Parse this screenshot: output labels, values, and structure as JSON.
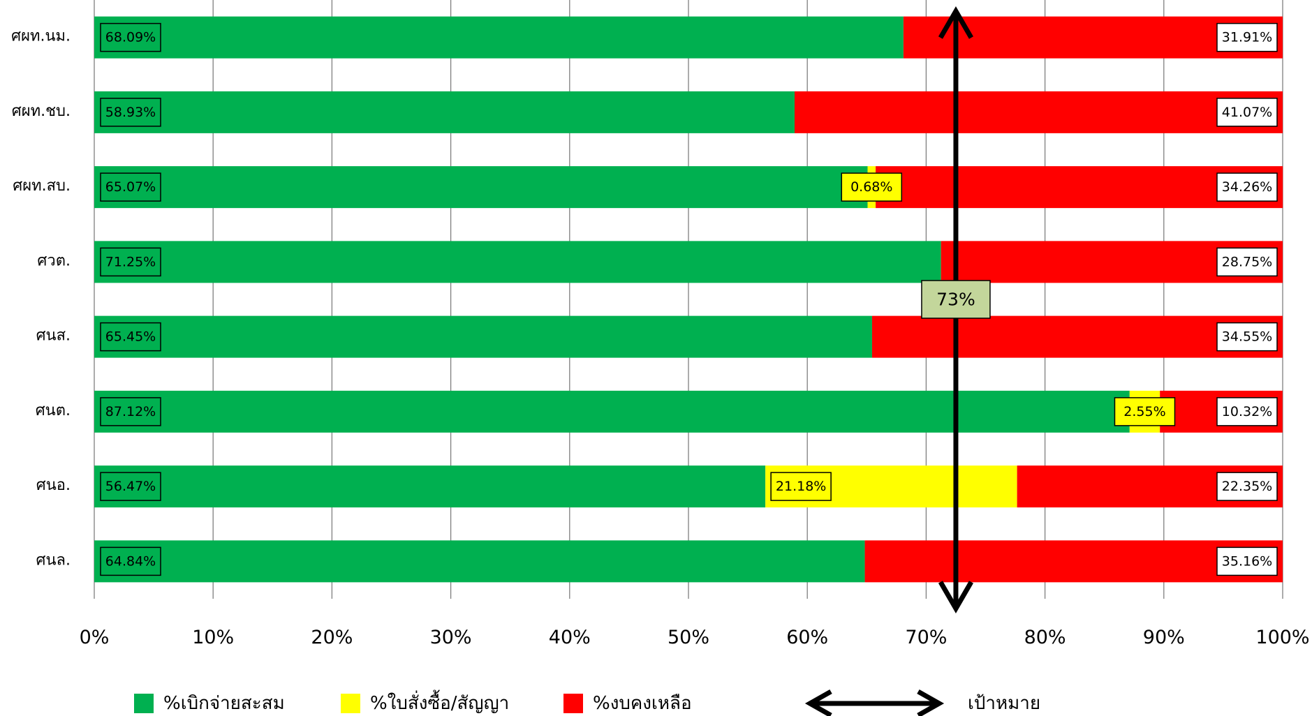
{
  "chart_data": {
    "type": "bar",
    "orientation": "horizontal",
    "stacked": "100%",
    "categories": [
      "ศผท.นม.",
      "ศผท.ชบ.",
      "ศผท.สบ.",
      "ศวต.",
      "ศนส.",
      "ศนต.",
      "ศนอ.",
      "ศนล."
    ],
    "series": [
      {
        "name": "%เบิกจ่ายสะสม",
        "color": "#00B050",
        "values": [
          68.09,
          58.93,
          65.07,
          71.25,
          65.45,
          87.12,
          56.47,
          64.84
        ],
        "labels": [
          "68.09%",
          "58.93%",
          "65.07%",
          "71.25%",
          "65.45%",
          "87.12%",
          "56.47%",
          "64.84%"
        ]
      },
      {
        "name": "%ใบสั่งซื้อ/สัญญา",
        "color": "#FFFF00",
        "values": [
          0,
          0,
          0.68,
          0,
          0,
          2.55,
          21.18,
          0
        ],
        "labels": [
          "",
          "",
          "0.68%",
          "",
          "",
          "2.55%",
          "21.18%",
          ""
        ]
      },
      {
        "name": "%งบคงเหลือ",
        "color": "#FF0000",
        "values": [
          31.91,
          41.07,
          34.26,
          28.75,
          34.55,
          10.32,
          22.35,
          35.16
        ],
        "labels": [
          "31.91%",
          "41.07%",
          "34.26%",
          "28.75%",
          "34.55%",
          "10.32%",
          "22.35%",
          "35.16%"
        ]
      }
    ],
    "x_ticks": [
      "0%",
      "10%",
      "20%",
      "30%",
      "40%",
      "50%",
      "60%",
      "70%",
      "80%",
      "90%",
      "100%"
    ],
    "xlim": [
      0,
      100
    ],
    "grid": "vertical",
    "legend_position": "bottom",
    "target": {
      "value": 72.5,
      "label": "73%",
      "legend_label": "เป้าหมาย",
      "color": "#000000",
      "label_bg": "#C3D69B"
    }
  }
}
